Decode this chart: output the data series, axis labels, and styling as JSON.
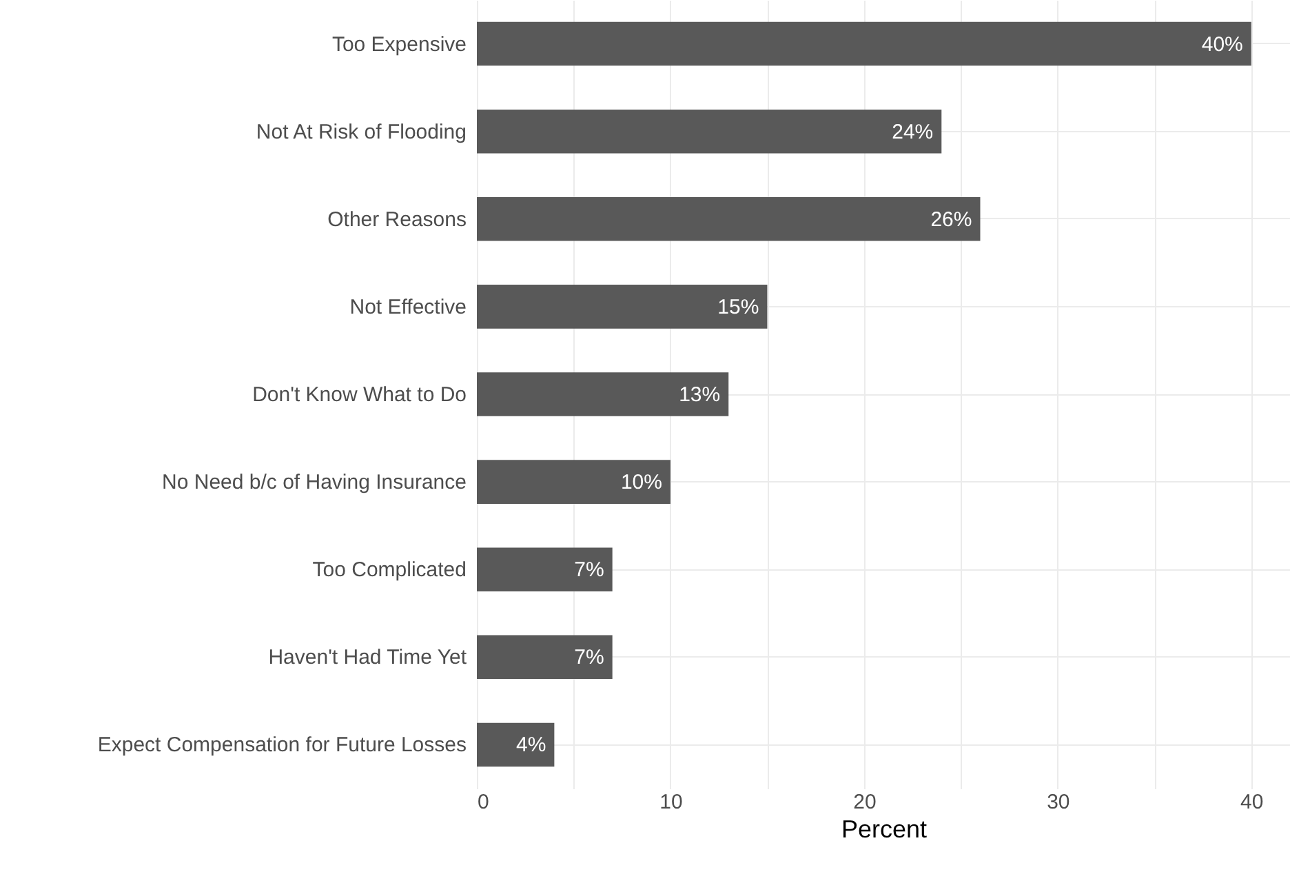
{
  "chart_data": {
    "type": "bar",
    "orientation": "horizontal",
    "xlabel": "Percent",
    "categories": [
      "Too Expensive",
      "Not At Risk of Flooding",
      "Other Reasons",
      "Not Effective",
      "Don't Know What to Do",
      "No Need b/c of Having Insurance",
      "Too Complicated",
      "Haven't Had Time Yet",
      "Expect Compensation for Future Losses"
    ],
    "values": [
      40,
      24,
      26,
      15,
      13,
      10,
      7,
      7,
      4
    ],
    "value_labels": [
      "40%",
      "24%",
      "26%",
      "15%",
      "13%",
      "10%",
      "7%",
      "7%",
      "4%"
    ],
    "color": "#595959",
    "xlim": [
      0,
      42
    ],
    "xticks": [
      0,
      {
        "value": 5,
        "label": null
      },
      10,
      {
        "value": 15,
        "label": null
      },
      20,
      {
        "value": 25,
        "label": null
      },
      30,
      {
        "value": 35,
        "label": null
      },
      40
    ],
    "grid": true
  }
}
